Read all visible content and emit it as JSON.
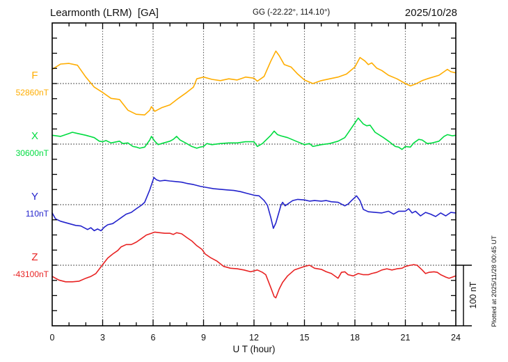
{
  "header": {
    "station_title": "Learmonth (LRM)  [GA]",
    "coords": "GG (-22.22°, 114.10°)",
    "date": "2025/10/28"
  },
  "axis": {
    "xlabel": "U T (hour)",
    "x_ticks": [
      "0",
      "3",
      "6",
      "9",
      "12",
      "15",
      "18",
      "21",
      "24"
    ]
  },
  "scale_bar": {
    "label": "100 nT"
  },
  "footer_note": "Plotted at 2025/11/28 00:45 UT",
  "chart_data": {
    "type": "line",
    "title": "Learmonth (LRM) [GA] magnetogram 2025/10/28",
    "xlabel": "U T (hour)",
    "x_range": [
      0,
      24
    ],
    "x_ticks": [
      0,
      3,
      6,
      9,
      12,
      15,
      18,
      21,
      24
    ],
    "grid": "dotted vertical every 3h, dotted horizontal at each trace baseline",
    "scale_bar_nT": 100,
    "legend_position": "left margin (trace name + baseline value)",
    "series": [
      {
        "name": "F",
        "baseline_label": "52860nT",
        "baseline_value": 52860,
        "color": "#FFAD00",
        "points": [
          [
            0,
            52884
          ],
          [
            0.5,
            52893
          ],
          [
            1,
            52894
          ],
          [
            1.5,
            52891
          ],
          [
            2,
            52871
          ],
          [
            2.5,
            52854
          ],
          [
            3,
            52845
          ],
          [
            3.5,
            52835
          ],
          [
            4,
            52833
          ],
          [
            4.5,
            52815
          ],
          [
            5,
            52808
          ],
          [
            5.5,
            52807
          ],
          [
            5.8,
            52815
          ],
          [
            5.9,
            52821
          ],
          [
            6.1,
            52813
          ],
          [
            6.5,
            52819
          ],
          [
            7,
            52824
          ],
          [
            7.5,
            52835
          ],
          [
            8,
            52845
          ],
          [
            8.4,
            52854
          ],
          [
            8.6,
            52868
          ],
          [
            9,
            52871
          ],
          [
            9.5,
            52867
          ],
          [
            10,
            52865
          ],
          [
            10.5,
            52868
          ],
          [
            11,
            52866
          ],
          [
            11.5,
            52871
          ],
          [
            12,
            52869
          ],
          [
            12.2,
            52864
          ],
          [
            12.6,
            52872
          ],
          [
            13,
            52898
          ],
          [
            13.3,
            52915
          ],
          [
            13.5,
            52907
          ],
          [
            13.8,
            52892
          ],
          [
            14.2,
            52888
          ],
          [
            14.6,
            52876
          ],
          [
            15,
            52866
          ],
          [
            15.5,
            52860
          ],
          [
            16,
            52865
          ],
          [
            16.5,
            52868
          ],
          [
            17,
            52871
          ],
          [
            17.5,
            52876
          ],
          [
            18,
            52888
          ],
          [
            18.3,
            52904
          ],
          [
            18.6,
            52898
          ],
          [
            18.8,
            52892
          ],
          [
            19,
            52895
          ],
          [
            19.3,
            52886
          ],
          [
            19.6,
            52882
          ],
          [
            20,
            52874
          ],
          [
            20.5,
            52868
          ],
          [
            21,
            52860
          ],
          [
            21.3,
            52856
          ],
          [
            21.6,
            52859
          ],
          [
            22,
            52865
          ],
          [
            22.3,
            52868
          ],
          [
            23,
            52874
          ],
          [
            23.3,
            52880
          ],
          [
            23.5,
            52884
          ],
          [
            23.7,
            52880
          ],
          [
            24,
            52878
          ]
        ]
      },
      {
        "name": "X",
        "baseline_label": "30600nT",
        "baseline_value": 30600,
        "color": "#00DC40",
        "points": [
          [
            0,
            30615
          ],
          [
            0.5,
            30613
          ],
          [
            1,
            30618
          ],
          [
            1.2,
            30620
          ],
          [
            1.5,
            30618
          ],
          [
            2,
            30615
          ],
          [
            2.5,
            30611
          ],
          [
            2.8,
            30605
          ],
          [
            3,
            30604
          ],
          [
            3.2,
            30606
          ],
          [
            3.5,
            30602
          ],
          [
            4,
            30605
          ],
          [
            4.2,
            30601
          ],
          [
            4.5,
            30602
          ],
          [
            4.8,
            30596
          ],
          [
            5,
            30595
          ],
          [
            5.2,
            30593
          ],
          [
            5.5,
            30595
          ],
          [
            5.8,
            30607
          ],
          [
            5.9,
            30613
          ],
          [
            6.1,
            30605
          ],
          [
            6.3,
            30599
          ],
          [
            6.5,
            30601
          ],
          [
            7,
            30605
          ],
          [
            7.2,
            30608
          ],
          [
            7.4,
            30613
          ],
          [
            7.6,
            30607
          ],
          [
            8,
            30601
          ],
          [
            8.3,
            30596
          ],
          [
            8.6,
            30593
          ],
          [
            8.8,
            30595
          ],
          [
            9,
            30596
          ],
          [
            9.2,
            30601
          ],
          [
            9.5,
            30599
          ],
          [
            10,
            30601
          ],
          [
            10.5,
            30602
          ],
          [
            11,
            30602
          ],
          [
            11.5,
            30604
          ],
          [
            12,
            30604
          ],
          [
            12.2,
            30596
          ],
          [
            12.5,
            30601
          ],
          [
            13,
            30615
          ],
          [
            13.2,
            30622
          ],
          [
            13.4,
            30616
          ],
          [
            13.6,
            30614
          ],
          [
            14,
            30611
          ],
          [
            14.5,
            30605
          ],
          [
            15,
            30599
          ],
          [
            15.3,
            30601
          ],
          [
            15.5,
            30596
          ],
          [
            16,
            30599
          ],
          [
            16.5,
            30601
          ],
          [
            17,
            30605
          ],
          [
            17.4,
            30611
          ],
          [
            17.6,
            30619
          ],
          [
            18.2,
            30644
          ],
          [
            18.5,
            30634
          ],
          [
            18.7,
            30631
          ],
          [
            18.9,
            30632
          ],
          [
            19.2,
            30620
          ],
          [
            19.7,
            30611
          ],
          [
            20,
            30605
          ],
          [
            20.4,
            30596
          ],
          [
            20.6,
            30595
          ],
          [
            20.8,
            30591
          ],
          [
            21,
            30596
          ],
          [
            21.3,
            30595
          ],
          [
            21.5,
            30602
          ],
          [
            21.8,
            30608
          ],
          [
            22,
            30607
          ],
          [
            22.3,
            30601
          ],
          [
            22.6,
            30602
          ],
          [
            23,
            30605
          ],
          [
            23.3,
            30613
          ],
          [
            23.5,
            30616
          ],
          [
            23.8,
            30614
          ],
          [
            24,
            30615
          ]
        ]
      },
      {
        "name": "Y",
        "baseline_label": "110nT",
        "baseline_value": 110,
        "color": "#2222CC",
        "points": [
          [
            0,
            96
          ],
          [
            0.2,
            86
          ],
          [
            0.5,
            82
          ],
          [
            1,
            78
          ],
          [
            1.4,
            75
          ],
          [
            1.7,
            74
          ],
          [
            2.1,
            68
          ],
          [
            2.3,
            71
          ],
          [
            2.5,
            66
          ],
          [
            2.7,
            69
          ],
          [
            2.9,
            66
          ],
          [
            3.1,
            72
          ],
          [
            3.3,
            76
          ],
          [
            3.6,
            78
          ],
          [
            3.9,
            84
          ],
          [
            4.1,
            88
          ],
          [
            4.4,
            94
          ],
          [
            4.7,
            97
          ],
          [
            5,
            103
          ],
          [
            5.3,
            109
          ],
          [
            5.5,
            114
          ],
          [
            5.8,
            135
          ],
          [
            6.05,
            156
          ],
          [
            6.2,
            152
          ],
          [
            6.4,
            150
          ],
          [
            6.7,
            151
          ],
          [
            7,
            150
          ],
          [
            7.4,
            149
          ],
          [
            7.7,
            148
          ],
          [
            8,
            146
          ],
          [
            8.4,
            144
          ],
          [
            8.8,
            141
          ],
          [
            9.2,
            139
          ],
          [
            9.6,
            137
          ],
          [
            10,
            136
          ],
          [
            10.4,
            135
          ],
          [
            10.8,
            134
          ],
          [
            11.2,
            132
          ],
          [
            11.6,
            129
          ],
          [
            12,
            126
          ],
          [
            12.3,
            125
          ],
          [
            12.6,
            117
          ],
          [
            12.8,
            109
          ],
          [
            13,
            88
          ],
          [
            13.15,
            70
          ],
          [
            13.3,
            79
          ],
          [
            13.5,
            99
          ],
          [
            13.6,
            109
          ],
          [
            13.7,
            114
          ],
          [
            13.85,
            108
          ],
          [
            14,
            111
          ],
          [
            14.3,
            117
          ],
          [
            14.6,
            119
          ],
          [
            15,
            118
          ],
          [
            15.3,
            116
          ],
          [
            15.6,
            117
          ],
          [
            16,
            116
          ],
          [
            16.3,
            117
          ],
          [
            16.6,
            115
          ],
          [
            17,
            114
          ],
          [
            17.4,
            108
          ],
          [
            17.6,
            111
          ],
          [
            17.8,
            117
          ],
          [
            18.1,
            125
          ],
          [
            18.3,
            117
          ],
          [
            18.5,
            102
          ],
          [
            18.8,
            98
          ],
          [
            19.2,
            97
          ],
          [
            19.6,
            96
          ],
          [
            20,
            99
          ],
          [
            20.3,
            94
          ],
          [
            20.6,
            99
          ],
          [
            21,
            99
          ],
          [
            21.2,
            103
          ],
          [
            21.4,
            96
          ],
          [
            21.6,
            99
          ],
          [
            21.9,
            91
          ],
          [
            22.2,
            97
          ],
          [
            22.5,
            94
          ],
          [
            22.8,
            90
          ],
          [
            23.1,
            96
          ],
          [
            23.4,
            91
          ],
          [
            23.7,
            97
          ],
          [
            24,
            96
          ]
        ]
      },
      {
        "name": "Z",
        "baseline_label": "-43100nT",
        "baseline_value": -43100,
        "color": "#E82222",
        "points": [
          [
            0,
            -43119
          ],
          [
            0.4,
            -43125
          ],
          [
            0.8,
            -43128
          ],
          [
            1.2,
            -43128
          ],
          [
            1.6,
            -43127
          ],
          [
            2,
            -43122
          ],
          [
            2.3,
            -43119
          ],
          [
            2.6,
            -43114
          ],
          [
            3,
            -43099
          ],
          [
            3.3,
            -43088
          ],
          [
            3.6,
            -43081
          ],
          [
            3.9,
            -43075
          ],
          [
            4.1,
            -43069
          ],
          [
            4.4,
            -43065
          ],
          [
            4.7,
            -43065
          ],
          [
            5,
            -43061
          ],
          [
            5.3,
            -43055
          ],
          [
            5.6,
            -43049
          ],
          [
            5.9,
            -43046
          ],
          [
            6.1,
            -43044
          ],
          [
            6.4,
            -43045
          ],
          [
            6.7,
            -43046
          ],
          [
            7,
            -43046
          ],
          [
            7.2,
            -43048
          ],
          [
            7.4,
            -43045
          ],
          [
            7.7,
            -43047
          ],
          [
            8,
            -43053
          ],
          [
            8.3,
            -43059
          ],
          [
            8.6,
            -43067
          ],
          [
            8.9,
            -43073
          ],
          [
            9.1,
            -43081
          ],
          [
            9.4,
            -43087
          ],
          [
            9.8,
            -43093
          ],
          [
            10.2,
            -43102
          ],
          [
            10.6,
            -43105
          ],
          [
            11,
            -43106
          ],
          [
            11.4,
            -43108
          ],
          [
            11.8,
            -43111
          ],
          [
            12.2,
            -43108
          ],
          [
            12.5,
            -43112
          ],
          [
            12.7,
            -43116
          ],
          [
            13,
            -43138
          ],
          [
            13.2,
            -43153
          ],
          [
            13.3,
            -43155
          ],
          [
            13.5,
            -43140
          ],
          [
            13.7,
            -43129
          ],
          [
            14,
            -43118
          ],
          [
            14.4,
            -43108
          ],
          [
            15,
            -43102
          ],
          [
            15.3,
            -43100
          ],
          [
            15.6,
            -43105
          ],
          [
            16,
            -43107
          ],
          [
            16.3,
            -43111
          ],
          [
            16.6,
            -43114
          ],
          [
            16.9,
            -43120
          ],
          [
            17,
            -43122
          ],
          [
            17.2,
            -43112
          ],
          [
            17.4,
            -43111
          ],
          [
            17.6,
            -43116
          ],
          [
            17.9,
            -43118
          ],
          [
            18.2,
            -43114
          ],
          [
            18.5,
            -43116
          ],
          [
            18.8,
            -43116
          ],
          [
            19,
            -43114
          ],
          [
            19.3,
            -43112
          ],
          [
            19.6,
            -43108
          ],
          [
            19.9,
            -43106
          ],
          [
            20.2,
            -43108
          ],
          [
            20.5,
            -43106
          ],
          [
            20.8,
            -43105
          ],
          [
            21,
            -43102
          ],
          [
            21.3,
            -43100
          ],
          [
            21.5,
            -43099
          ],
          [
            21.7,
            -43100
          ],
          [
            22,
            -43108
          ],
          [
            22.2,
            -43114
          ],
          [
            22.4,
            -43112
          ],
          [
            22.7,
            -43111
          ],
          [
            22.9,
            -43112
          ],
          [
            23.1,
            -43116
          ],
          [
            23.4,
            -43120
          ],
          [
            23.6,
            -43122
          ],
          [
            23.8,
            -43120
          ],
          [
            24,
            -43118
          ]
        ]
      }
    ]
  }
}
